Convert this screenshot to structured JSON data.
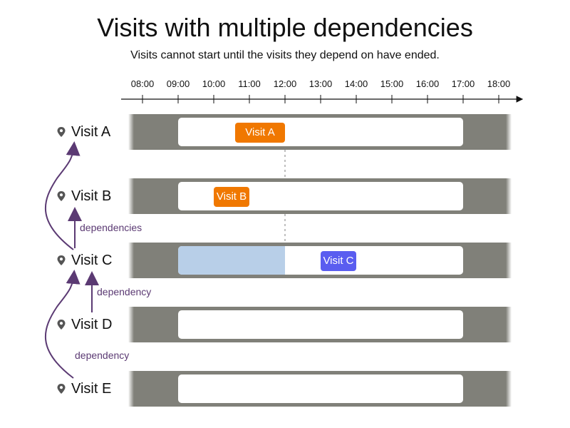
{
  "title": "Visits with multiple dependencies",
  "subtitle": "Visits cannot start until the visits they depend on have ended.",
  "timeline": {
    "ticks": [
      "08:00",
      "09:00",
      "10:00",
      "11:00",
      "12:00",
      "13:00",
      "14:00",
      "15:00",
      "16:00",
      "17:00",
      "18:00"
    ],
    "range_start_hour": 7.6,
    "range_end_hour": 18.3
  },
  "colors": {
    "lane_gray": "#808079",
    "chip_orange": "#f07800",
    "chip_blue": "#5a5df0",
    "wait_blue": "#b8cfe8",
    "arrow_purple": "#5b3a73"
  },
  "rows": [
    {
      "label": "Visit A",
      "icon": "map-pin-icon",
      "window_start": 9.0,
      "window_end": 17.0,
      "visit": {
        "label": "Visit A",
        "start": 10.6,
        "end": 12.0,
        "color": "#f07800"
      }
    },
    {
      "label": "Visit B",
      "icon": "map-pin-icon",
      "window_start": 9.0,
      "window_end": 17.0,
      "visit": {
        "label": "Visit B",
        "start": 10.0,
        "end": 11.0,
        "color": "#f07800"
      }
    },
    {
      "label": "Visit C",
      "icon": "map-pin-icon",
      "window_start": 9.0,
      "window_end": 17.0,
      "wait": {
        "start": 9.0,
        "end": 12.0
      },
      "visit": {
        "label": "Visit C",
        "start": 13.0,
        "end": 14.0,
        "color": "#5a5df0"
      }
    },
    {
      "label": "Visit D",
      "icon": "map-pin-icon",
      "window_start": 9.0,
      "window_end": 17.0
    },
    {
      "label": "Visit E",
      "icon": "map-pin-icon",
      "window_start": 9.0,
      "window_end": 17.0
    }
  ],
  "dependencies": [
    {
      "label": "dependencies"
    },
    {
      "label": "dependency"
    },
    {
      "label": "dependency"
    }
  ]
}
